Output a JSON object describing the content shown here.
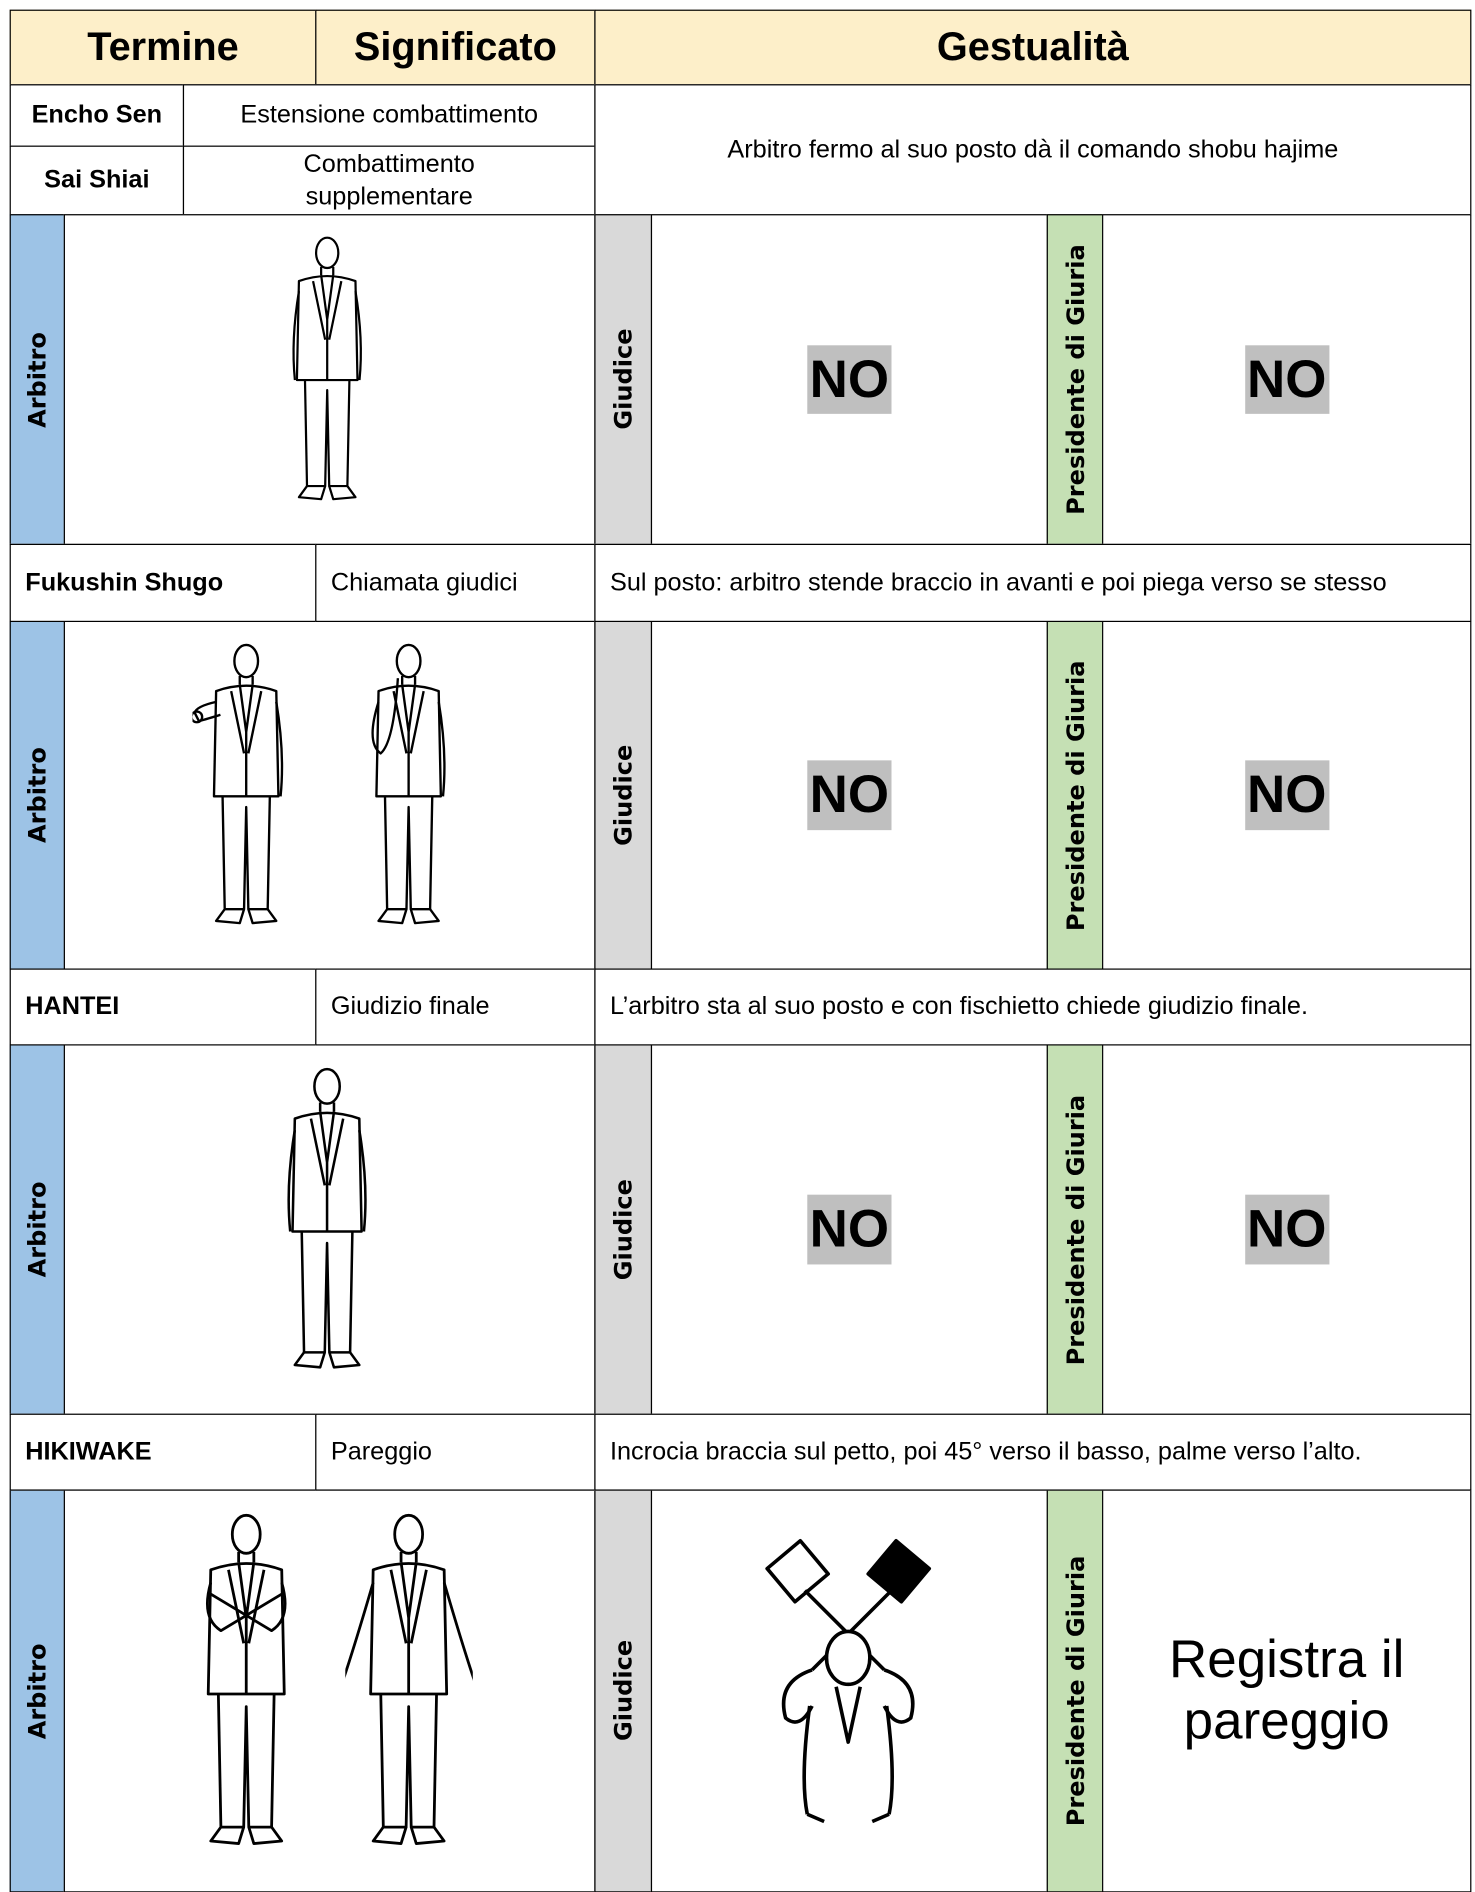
{
  "header": {
    "termine": "Termine",
    "significato": "Significato",
    "gestualita": "Gestualità"
  },
  "intro": {
    "terms": [
      {
        "term": "Encho Sen",
        "meaning": "Estensione combattimento"
      },
      {
        "term": "Sai Shiai",
        "meaning": "Combattimento supplementare"
      }
    ],
    "description": "Arbitro fermo al suo posto dà il comando shobu hajime"
  },
  "entries": [
    {
      "term": "Fukushin Shugo",
      "meaning": "Chiamata giudici",
      "description": "Sul posto: arbitro stende braccio in avanti e poi piega verso se stesso"
    },
    {
      "term": "HANTEI",
      "meaning": "Giudizio finale",
      "description": "L’arbitro sta al suo posto e con fischietto chiede giudizio finale."
    },
    {
      "term": "HIKIWAKE",
      "meaning": "Pareggio",
      "description": "Incrocia braccia sul petto, poi 45° verso il basso, palme verso l’alto."
    }
  ],
  "panels": [
    {
      "arbitro": "Arbitro",
      "giudice": "Giudice",
      "giudice_gesture": "NO",
      "presidente": "Presidente di Giuria",
      "presidente_gesture": "NO"
    },
    {
      "arbitro": "Arbitro",
      "giudice": "Giudice",
      "giudice_gesture": "NO",
      "presidente": "Presidente di Giuria",
      "presidente_gesture": "NO"
    },
    {
      "arbitro": "Arbitro",
      "giudice": "Giudice",
      "giudice_gesture": "NO",
      "presidente": "Presidente di Giuria",
      "presidente_gesture": "NO"
    },
    {
      "arbitro": "Arbitro",
      "giudice": "Giudice",
      "presidente": "Presidente di Giuria",
      "presidente_gesture": "Registra il pareggio"
    }
  ]
}
